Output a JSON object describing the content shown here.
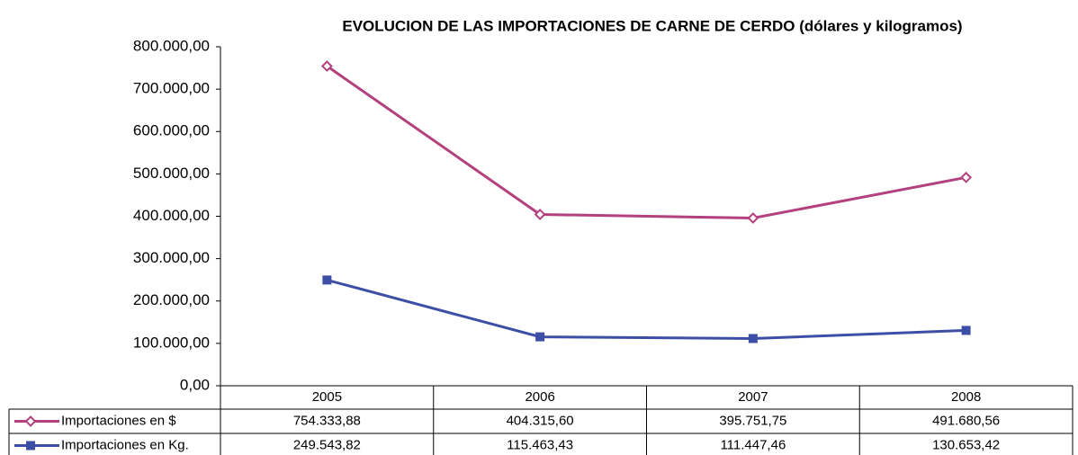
{
  "chart_data": {
    "type": "line",
    "title": "EVOLUCION DE LAS IMPORTACIONES DE  CARNE DE CERDO (dólares y kilogramos)",
    "categories": [
      "2005",
      "2006",
      "2007",
      "2008"
    ],
    "series": [
      {
        "name": "Importaciones en $",
        "color": "#b3417e",
        "marker": "diamond",
        "values": [
          754333.88,
          404315.6,
          395751.75,
          491680.56
        ],
        "value_labels": [
          "754.333,88",
          "404.315,60",
          "395.751,75",
          "491.680,56"
        ]
      },
      {
        "name": "Importaciones en Kg.",
        "color": "#3d4ea6",
        "marker": "square",
        "values": [
          249543.82,
          115463.43,
          111447.46,
          130653.42
        ],
        "value_labels": [
          "249.543,82",
          "115.463,43",
          "111.447,46",
          "130.653,42"
        ]
      }
    ],
    "ylim": [
      0,
      800000
    ],
    "yticks": [
      {
        "value": 0,
        "label": "0,00"
      },
      {
        "value": 100000,
        "label": "100.000,00"
      },
      {
        "value": 200000,
        "label": "200.000,00"
      },
      {
        "value": 300000,
        "label": "300.000,00"
      },
      {
        "value": 400000,
        "label": "400.000,00"
      },
      {
        "value": 500000,
        "label": "500.000,00"
      },
      {
        "value": 600000,
        "label": "600.000,00"
      },
      {
        "value": 700000,
        "label": "700.000,00"
      },
      {
        "value": 800000,
        "label": "800.000,00"
      }
    ],
    "grid": false
  }
}
